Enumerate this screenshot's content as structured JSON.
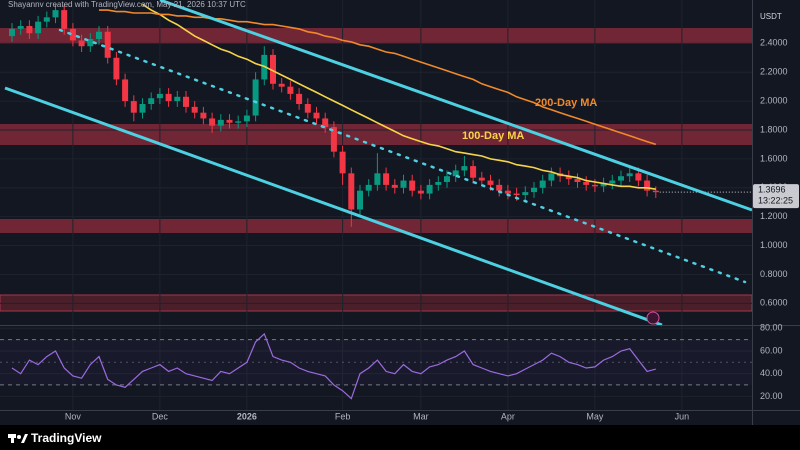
{
  "chart_data": {
    "type": "candlestick",
    "header": "Shayannv created with TradingView.com, May 21, 2026 10:37 UTC",
    "currency": "USDT",
    "countdown": "13:22:25",
    "watermark": "TradingView",
    "up_color": "#089981",
    "down_color": "#f23645",
    "grid": true,
    "categories": [
      null,
      null,
      null,
      null,
      null,
      null,
      null,
      "Nov",
      null,
      null,
      null,
      null,
      null,
      null,
      null,
      null,
      null,
      "Dec",
      null,
      null,
      null,
      null,
      null,
      null,
      null,
      null,
      null,
      "2026",
      null,
      null,
      null,
      null,
      null,
      null,
      null,
      null,
      null,
      null,
      "Feb",
      null,
      null,
      null,
      null,
      null,
      null,
      null,
      null,
      "Mar",
      null,
      null,
      null,
      null,
      null,
      null,
      null,
      null,
      null,
      "Apr",
      null,
      null,
      null,
      null,
      null,
      null,
      null,
      null,
      null,
      "May",
      null,
      null,
      null,
      null,
      null,
      null,
      null,
      null,
      null,
      "Jun",
      null,
      null,
      null,
      null,
      null,
      null,
      null
    ],
    "open": [
      2.45,
      2.5,
      2.52,
      2.47,
      2.55,
      2.58,
      2.63,
      2.5,
      2.42,
      2.38,
      2.43,
      2.48,
      2.3,
      2.15,
      2.0,
      1.92,
      1.98,
      2.02,
      2.05,
      2.0,
      2.03,
      1.96,
      1.92,
      1.88,
      1.83,
      1.87,
      1.85,
      1.86,
      1.9,
      2.15,
      2.32,
      2.12,
      2.1,
      2.05,
      1.98,
      1.92,
      1.88,
      1.82,
      1.65,
      1.5,
      1.25,
      1.38,
      1.42,
      1.5,
      1.42,
      1.4,
      1.45,
      1.38,
      1.36,
      1.42,
      1.44,
      1.48,
      1.52,
      1.55,
      1.47,
      1.45,
      1.42,
      1.38,
      1.36,
      1.35,
      1.37,
      1.4,
      1.45,
      1.5,
      1.48,
      1.46,
      1.44,
      1.42,
      1.41,
      1.43,
      1.45,
      1.48,
      1.5,
      1.45,
      1.38,
      null,
      null,
      null,
      null,
      null,
      null,
      null,
      null,
      null,
      null
    ],
    "high": [
      2.54,
      2.56,
      2.56,
      2.59,
      2.62,
      2.67,
      2.67,
      2.54,
      2.46,
      2.47,
      2.52,
      2.52,
      2.34,
      2.19,
      2.04,
      2.02,
      2.06,
      2.09,
      2.09,
      2.07,
      2.07,
      2.0,
      1.96,
      1.92,
      1.91,
      1.91,
      1.9,
      1.94,
      2.2,
      2.38,
      2.36,
      2.16,
      2.14,
      2.09,
      2.02,
      1.96,
      1.92,
      1.86,
      1.69,
      1.54,
      1.42,
      1.46,
      1.64,
      1.54,
      1.46,
      1.49,
      1.49,
      1.42,
      1.46,
      1.48,
      1.52,
      1.56,
      1.62,
      1.59,
      1.51,
      1.49,
      1.46,
      1.42,
      1.4,
      1.41,
      1.44,
      1.49,
      1.54,
      1.54,
      1.52,
      1.5,
      1.48,
      1.46,
      1.47,
      1.49,
      1.52,
      1.54,
      1.54,
      1.49,
      1.41,
      null,
      null,
      null,
      null,
      null,
      null,
      null,
      null,
      null,
      null
    ],
    "low": [
      2.41,
      2.46,
      2.43,
      2.43,
      2.51,
      2.54,
      2.46,
      2.38,
      2.34,
      2.34,
      2.39,
      2.26,
      2.11,
      1.96,
      1.86,
      1.88,
      1.94,
      1.98,
      1.96,
      1.96,
      1.92,
      1.88,
      1.84,
      1.78,
      1.79,
      1.81,
      1.81,
      1.82,
      1.86,
      2.11,
      2.08,
      2.06,
      2.01,
      1.94,
      1.88,
      1.84,
      1.78,
      1.61,
      1.42,
      1.13,
      1.2,
      1.34,
      1.38,
      1.38,
      1.36,
      1.36,
      1.34,
      1.32,
      1.32,
      1.38,
      1.4,
      1.44,
      1.48,
      1.43,
      1.41,
      1.38,
      1.34,
      1.32,
      1.31,
      1.31,
      1.33,
      1.36,
      1.41,
      1.44,
      1.42,
      1.4,
      1.38,
      1.37,
      1.37,
      1.39,
      1.41,
      1.44,
      1.41,
      1.34,
      1.33,
      null,
      null,
      null,
      null,
      null,
      null,
      null,
      null,
      null,
      null
    ],
    "close": [
      2.5,
      2.52,
      2.47,
      2.55,
      2.58,
      2.63,
      2.5,
      2.42,
      2.38,
      2.43,
      2.48,
      2.3,
      2.15,
      2.0,
      1.92,
      1.98,
      2.02,
      2.05,
      2.0,
      2.03,
      1.96,
      1.92,
      1.88,
      1.83,
      1.87,
      1.85,
      1.86,
      1.9,
      2.15,
      2.32,
      2.12,
      2.1,
      2.05,
      1.98,
      1.92,
      1.88,
      1.82,
      1.65,
      1.5,
      1.25,
      1.38,
      1.42,
      1.5,
      1.42,
      1.4,
      1.45,
      1.38,
      1.36,
      1.42,
      1.44,
      1.48,
      1.52,
      1.55,
      1.47,
      1.45,
      1.42,
      1.38,
      1.36,
      1.35,
      1.37,
      1.4,
      1.45,
      1.5,
      1.48,
      1.46,
      1.44,
      1.42,
      1.41,
      1.43,
      1.45,
      1.48,
      1.5,
      1.45,
      1.38,
      1.3696,
      null,
      null,
      null,
      null,
      null,
      null,
      null,
      null,
      null,
      null
    ],
    "series": [
      {
        "name": "100-Day MA",
        "color": "#f5d547",
        "values": [
          null,
          null,
          null,
          null,
          null,
          null,
          null,
          null,
          null,
          null,
          null,
          null,
          null,
          null,
          null,
          2.67,
          2.63,
          2.6,
          2.56,
          2.53,
          2.49,
          2.45,
          2.42,
          2.39,
          2.36,
          2.34,
          2.31,
          2.29,
          2.26,
          2.24,
          2.21,
          2.18,
          2.15,
          2.12,
          2.09,
          2.06,
          2.03,
          2.0,
          1.97,
          1.94,
          1.91,
          1.88,
          1.85,
          1.82,
          1.79,
          1.76,
          1.74,
          1.72,
          1.7,
          1.69,
          1.67,
          1.65,
          1.64,
          1.63,
          1.62,
          1.6,
          1.59,
          1.58,
          1.56,
          1.55,
          1.54,
          1.52,
          1.51,
          1.49,
          1.48,
          1.47,
          1.45,
          1.44,
          1.43,
          1.42,
          1.41,
          1.41,
          1.4,
          1.4,
          1.39,
          null,
          null,
          null,
          null,
          null,
          null,
          null,
          null,
          null,
          null
        ]
      },
      {
        "name": "200-Day MA",
        "color": "#f0892a",
        "values": [
          null,
          null,
          null,
          null,
          null,
          null,
          null,
          null,
          null,
          null,
          2.63,
          2.63,
          2.62,
          2.62,
          2.61,
          2.61,
          2.61,
          2.6,
          2.6,
          2.59,
          2.59,
          2.58,
          2.58,
          2.57,
          2.57,
          2.56,
          2.55,
          2.55,
          2.54,
          2.53,
          2.53,
          2.52,
          2.51,
          2.5,
          2.48,
          2.47,
          2.45,
          2.44,
          2.42,
          2.41,
          2.39,
          2.38,
          2.36,
          2.34,
          2.33,
          2.31,
          2.29,
          2.27,
          2.25,
          2.23,
          2.21,
          2.19,
          2.17,
          2.15,
          2.12,
          2.1,
          2.08,
          2.06,
          2.03,
          2.01,
          1.99,
          1.96,
          1.94,
          1.92,
          1.9,
          1.88,
          1.86,
          1.84,
          1.82,
          1.8,
          1.78,
          1.76,
          1.74,
          1.72,
          1.7,
          null,
          null,
          null,
          null,
          null,
          null,
          null,
          null,
          null,
          null
        ]
      }
    ],
    "ylim": [
      0.45,
      2.7
    ],
    "yticks": [
      {
        "value": 0.6,
        "label": "0.6000"
      },
      {
        "value": 0.8,
        "label": "0.8000"
      },
      {
        "value": 1.0,
        "label": "1.0000"
      },
      {
        "value": 1.2,
        "label": "1.2000"
      },
      {
        "value": 1.4,
        "label": "1.4000"
      },
      {
        "value": 1.6,
        "label": "1.6000"
      },
      {
        "value": 1.8,
        "label": "1.8000"
      },
      {
        "value": 2.0,
        "label": "2.0000"
      },
      {
        "value": 2.2,
        "label": "2.2000"
      },
      {
        "value": 2.4,
        "label": "2.4000"
      }
    ],
    "rsi": {
      "color": "#9c6ade",
      "values": [
        45,
        40,
        52,
        48,
        55,
        60,
        45,
        38,
        36,
        48,
        55,
        35,
        30,
        28,
        35,
        42,
        45,
        48,
        42,
        45,
        40,
        38,
        36,
        34,
        42,
        40,
        45,
        50,
        68,
        75,
        55,
        52,
        50,
        45,
        42,
        40,
        38,
        30,
        25,
        18,
        40,
        45,
        52,
        42,
        40,
        48,
        42,
        40,
        46,
        48,
        52,
        55,
        60,
        48,
        45,
        42,
        40,
        38,
        40,
        44,
        48,
        52,
        58,
        55,
        50,
        48,
        45,
        46,
        52,
        55,
        60,
        62,
        52,
        42,
        44,
        null,
        null,
        null,
        null,
        null,
        null,
        null,
        null,
        null,
        null
      ],
      "ylim": [
        8,
        82
      ],
      "yticks": [
        {
          "value": 20,
          "label": "20.00"
        },
        {
          "value": 40,
          "label": "40.00"
        },
        {
          "value": 60,
          "label": "60.00"
        },
        {
          "value": 80,
          "label": "80.00"
        }
      ]
    }
  }
}
